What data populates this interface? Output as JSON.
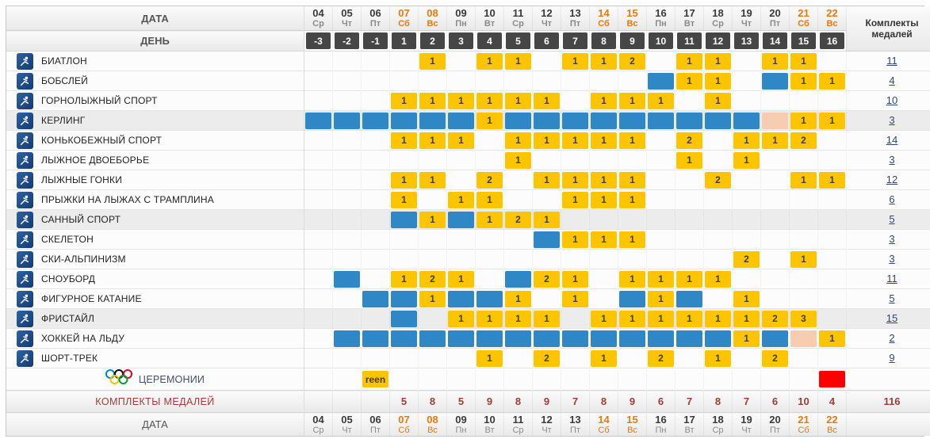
{
  "header": {
    "date_label": "ДАТА",
    "day_label": "ДЕНЬ",
    "medals_label_line1": "Комплекты",
    "medals_label_line2": "медалей",
    "dates": [
      {
        "day": "04",
        "wd": "Ср",
        "weekend": false
      },
      {
        "day": "05",
        "wd": "Чт",
        "weekend": false
      },
      {
        "day": "06",
        "wd": "Пт",
        "weekend": false
      },
      {
        "day": "07",
        "wd": "Сб",
        "weekend": true
      },
      {
        "day": "08",
        "wd": "Вс",
        "weekend": true
      },
      {
        "day": "09",
        "wd": "Пн",
        "weekend": false
      },
      {
        "day": "10",
        "wd": "Вт",
        "weekend": false
      },
      {
        "day": "11",
        "wd": "Ср",
        "weekend": false
      },
      {
        "day": "12",
        "wd": "Чт",
        "weekend": false
      },
      {
        "day": "13",
        "wd": "Пт",
        "weekend": false
      },
      {
        "day": "14",
        "wd": "Сб",
        "weekend": true
      },
      {
        "day": "15",
        "wd": "Вс",
        "weekend": true
      },
      {
        "day": "16",
        "wd": "Пн",
        "weekend": false
      },
      {
        "day": "17",
        "wd": "Вт",
        "weekend": false
      },
      {
        "day": "18",
        "wd": "Ср",
        "weekend": false
      },
      {
        "day": "19",
        "wd": "Чт",
        "weekend": false
      },
      {
        "day": "20",
        "wd": "Пт",
        "weekend": false
      },
      {
        "day": "21",
        "wd": "Сб",
        "weekend": true
      },
      {
        "day": "22",
        "wd": "Вс",
        "weekend": true
      }
    ],
    "days": [
      "-3",
      "-2",
      "-1",
      "1",
      "2",
      "3",
      "4",
      "5",
      "6",
      "7",
      "8",
      "9",
      "10",
      "11",
      "12",
      "13",
      "14",
      "15",
      "16"
    ]
  },
  "cell_legend": {
    "g": "medal-event-day-gold (number = medal sets awarded)",
    "b": "competition-day-blue",
    "p": "reserve-day-peach",
    "green": "opening-ceremony",
    "red": "closing-ceremony"
  },
  "colors": {
    "gold": "#fdc500",
    "blue": "#2f87c5",
    "peach": "#f7cdb2",
    "green": "#00bf00",
    "red": "#fe0000",
    "weekend_orange": "#e8790a",
    "day_header_dark": "#464646",
    "totals_red": "#a03c36"
  },
  "sports": [
    {
      "id": "biathlon",
      "name": "БИАТЛОН",
      "icon": "biathlon-icon",
      "total": "11",
      "cells": {
        "08": "g1",
        "10": "g1",
        "11": "g1",
        "13": "g1",
        "14": "g1",
        "15": "g2",
        "17": "g1",
        "18": "g1",
        "20": "g1",
        "21": "g1"
      }
    },
    {
      "id": "bobsleigh",
      "name": "БОБСЛЕЙ",
      "icon": "bobsleigh-icon",
      "total": "4",
      "cells": {
        "16": "b",
        "17": "g1",
        "18": "g1",
        "20": "b",
        "21": "g1",
        "22": "g1"
      }
    },
    {
      "id": "alpine-skiing",
      "name": "ГОРНОЛЫЖНЫЙ СПОРТ",
      "icon": "alpine-skiing-icon",
      "total": "10",
      "cells": {
        "07": "g1",
        "08": "g1",
        "09": "g1",
        "10": "g1",
        "11": "g1",
        "12": "g1",
        "14": "g1",
        "15": "g1",
        "16": "g1",
        "18": "g1"
      }
    },
    {
      "id": "curling",
      "name": "КЕРЛИНГ",
      "icon": "curling-icon",
      "total": "3",
      "cells": {
        "04": "b",
        "05": "b",
        "06": "b",
        "07": "b",
        "08": "b",
        "09": "b",
        "10": "g1",
        "11": "b",
        "12": "b",
        "13": "b",
        "14": "b",
        "15": "b",
        "16": "b",
        "17": "b",
        "18": "b",
        "19": "b",
        "20": "p",
        "21": "g1",
        "22": "g1"
      }
    },
    {
      "id": "speed-skating",
      "name": "КОНЬКОБЕЖНЫЙ СПОРТ",
      "icon": "speed-skating-icon",
      "total": "14",
      "cells": {
        "07": "g1",
        "08": "g1",
        "09": "g1",
        "11": "g1",
        "12": "g1",
        "13": "g1",
        "14": "g1",
        "15": "g1",
        "17": "g2",
        "19": "g1",
        "20": "g1",
        "21": "g2"
      }
    },
    {
      "id": "nordic-combined",
      "name": "ЛЫЖНОЕ ДВОЕБОРЬЕ",
      "icon": "nordic-combined-icon",
      "total": "3",
      "cells": {
        "11": "g1",
        "17": "g1",
        "19": "g1"
      }
    },
    {
      "id": "cross-country",
      "name": "ЛЫЖНЫЕ ГОНКИ",
      "icon": "cross-country-icon",
      "total": "12",
      "cells": {
        "07": "g1",
        "08": "g1",
        "10": "g2",
        "12": "g1",
        "13": "g1",
        "14": "g1",
        "15": "g1",
        "18": "g2",
        "21": "g1",
        "22": "g1"
      }
    },
    {
      "id": "ski-jumping",
      "name": "ПРЫЖКИ НА ЛЫЖАХ С ТРАМПЛИНА",
      "icon": "ski-jumping-icon",
      "total": "6",
      "cells": {
        "07": "g1",
        "09": "g1",
        "10": "g1",
        "13": "g1",
        "14": "g1",
        "15": "g1"
      }
    },
    {
      "id": "luge",
      "name": "САННЫЙ СПОРТ",
      "icon": "luge-icon",
      "total": "5",
      "cells": {
        "07": "b",
        "08": "g1",
        "09": "b",
        "10": "g1",
        "11": "g2",
        "12": "g1"
      }
    },
    {
      "id": "skeleton",
      "name": "СКЕЛЕТОН",
      "icon": "skeleton-icon",
      "total": "3",
      "cells": {
        "12": "b",
        "13": "g1",
        "14": "g1",
        "15": "g1"
      }
    },
    {
      "id": "ski-mountaineering",
      "name": "СКИ-АЛЬПИНИЗМ",
      "icon": "ski-mountaineering-icon",
      "total": "3",
      "cells": {
        "19": "g2",
        "21": "g1"
      }
    },
    {
      "id": "snowboard",
      "name": "СНОУБОРД",
      "icon": "snowboard-icon",
      "total": "11",
      "cells": {
        "05": "b",
        "07": "g1",
        "08": "g2",
        "09": "g1",
        "11": "b",
        "12": "g2",
        "13": "g1",
        "15": "g1",
        "16": "g1",
        "17": "g1",
        "18": "g1"
      }
    },
    {
      "id": "figure-skating",
      "name": "ФИГУРНОЕ КАТАНИЕ",
      "icon": "figure-skating-icon",
      "total": "5",
      "cells": {
        "06": "b",
        "07": "b",
        "08": "g1",
        "09": "b",
        "10": "b",
        "11": "g1",
        "13": "g1",
        "15": "b",
        "16": "g1",
        "17": "b",
        "19": "g1"
      }
    },
    {
      "id": "freestyle",
      "name": "ФРИСТАЙЛ",
      "icon": "freestyle-icon",
      "total": "15",
      "cells": {
        "07": "b",
        "09": "g1",
        "10": "g1",
        "11": "g1",
        "12": "g1",
        "14": "g1",
        "15": "g1",
        "16": "g1",
        "17": "g1",
        "18": "g1",
        "19": "g1",
        "20": "g2",
        "21": "g3"
      }
    },
    {
      "id": "ice-hockey",
      "name": "ХОККЕЙ НА ЛЬДУ",
      "icon": "ice-hockey-icon",
      "total": "2",
      "cells": {
        "05": "b",
        "06": "b",
        "07": "b",
        "08": "b",
        "09": "b",
        "10": "b",
        "11": "b",
        "12": "b",
        "13": "b",
        "14": "b",
        "15": "b",
        "16": "b",
        "17": "b",
        "18": "b",
        "19": "g1",
        "20": "b",
        "21": "p",
        "22": "g1"
      }
    },
    {
      "id": "short-track",
      "name": "ШОРТ-ТРЕК",
      "icon": "short-track-icon",
      "total": "9",
      "cells": {
        "10": "g1",
        "12": "g2",
        "14": "g1",
        "16": "g2",
        "18": "g1",
        "20": "g2"
      }
    }
  ],
  "ceremonies": {
    "label": "ЦЕРЕМОНИИ",
    "icon": "olympic-rings-icon",
    "cells": {
      "06": "green",
      "22": "red"
    }
  },
  "totals_row": {
    "label": "КОМПЛЕКТЫ МЕДАЛЕЙ",
    "values": {
      "07": "5",
      "08": "8",
      "09": "5",
      "10": "9",
      "11": "8",
      "12": "9",
      "13": "7",
      "14": "8",
      "15": "9",
      "16": "6",
      "17": "7",
      "18": "8",
      "19": "7",
      "20": "6",
      "21": "10",
      "22": "4"
    },
    "grand_total": "116"
  },
  "footer": {
    "date_label": "ДАТА"
  }
}
